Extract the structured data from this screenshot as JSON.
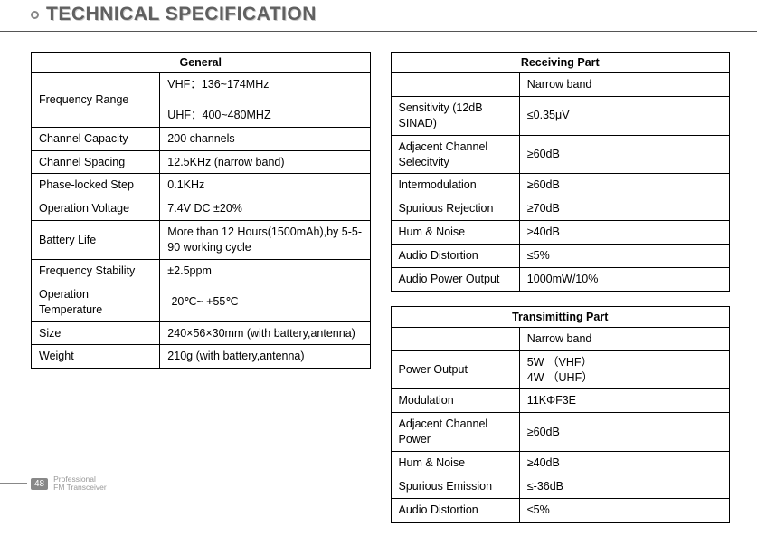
{
  "title": "TECHNICAL SPECIFICATION",
  "general": {
    "heading": "General",
    "rows": [
      {
        "label": "Frequency Range",
        "value": "VHF：136~174MHz\n\nUHF：400~480MHZ",
        "tall": true
      },
      {
        "label": "Channel Capacity",
        "value": "200 channels"
      },
      {
        "label": "Channel Spacing",
        "value": "12.5KHz (narrow band)"
      },
      {
        "label": "Phase-locked Step",
        "value": "0.1KHz"
      },
      {
        "label": "Operation Voltage",
        "value": "7.4V DC ±20%"
      },
      {
        "label": "Battery Life",
        "value": "More than 12 Hours(1500mAh),by 5-5-90 working  cycle"
      },
      {
        "label": "Frequency Stability",
        "value": "±2.5ppm"
      },
      {
        "label": "Operation Temperature",
        "value": "-20℃~ +55℃"
      },
      {
        "label": "Size",
        "value": "240×56×30mm (with battery,antenna)"
      },
      {
        "label": "Weight",
        "value": "210g (with battery,antenna)"
      }
    ]
  },
  "receiving": {
    "heading": "Receiving Part",
    "sub": "Narrow band",
    "rows": [
      {
        "label": "Sensitivity (12dB SINAD)",
        "value": "≤0.35μV"
      },
      {
        "label": "Adjacent Channel Selecitvity",
        "value": "≥60dB"
      },
      {
        "label": "Intermodulation",
        "value": "≥60dB"
      },
      {
        "label": "Spurious Rejection",
        "value": "≥70dB"
      },
      {
        "label": "Hum & Noise",
        "value": "≥40dB"
      },
      {
        "label": "Audio Distortion",
        "value": "≤5%"
      },
      {
        "label": "Audio Power Output",
        "value": "1000mW/10%"
      }
    ]
  },
  "transmitting": {
    "heading": "Transimitting Part",
    "sub": "Narrow band",
    "rows": [
      {
        "label": "Power Output",
        "value": "5W        （VHF）\n4W        （UHF）"
      },
      {
        "label": "Modulation",
        "value": "11KΦF3E"
      },
      {
        "label": "Adjacent Channel Power",
        "value": "≥60dB"
      },
      {
        "label": "Hum & Noise",
        "value": "≥40dB"
      },
      {
        "label": "Spurious Emission",
        "value": "≤-36dB"
      },
      {
        "label": "Audio Distortion",
        "value": "≤5%"
      }
    ]
  },
  "footer": {
    "page": "48",
    "line1": "Professional",
    "line2": "FM Transceiver"
  }
}
